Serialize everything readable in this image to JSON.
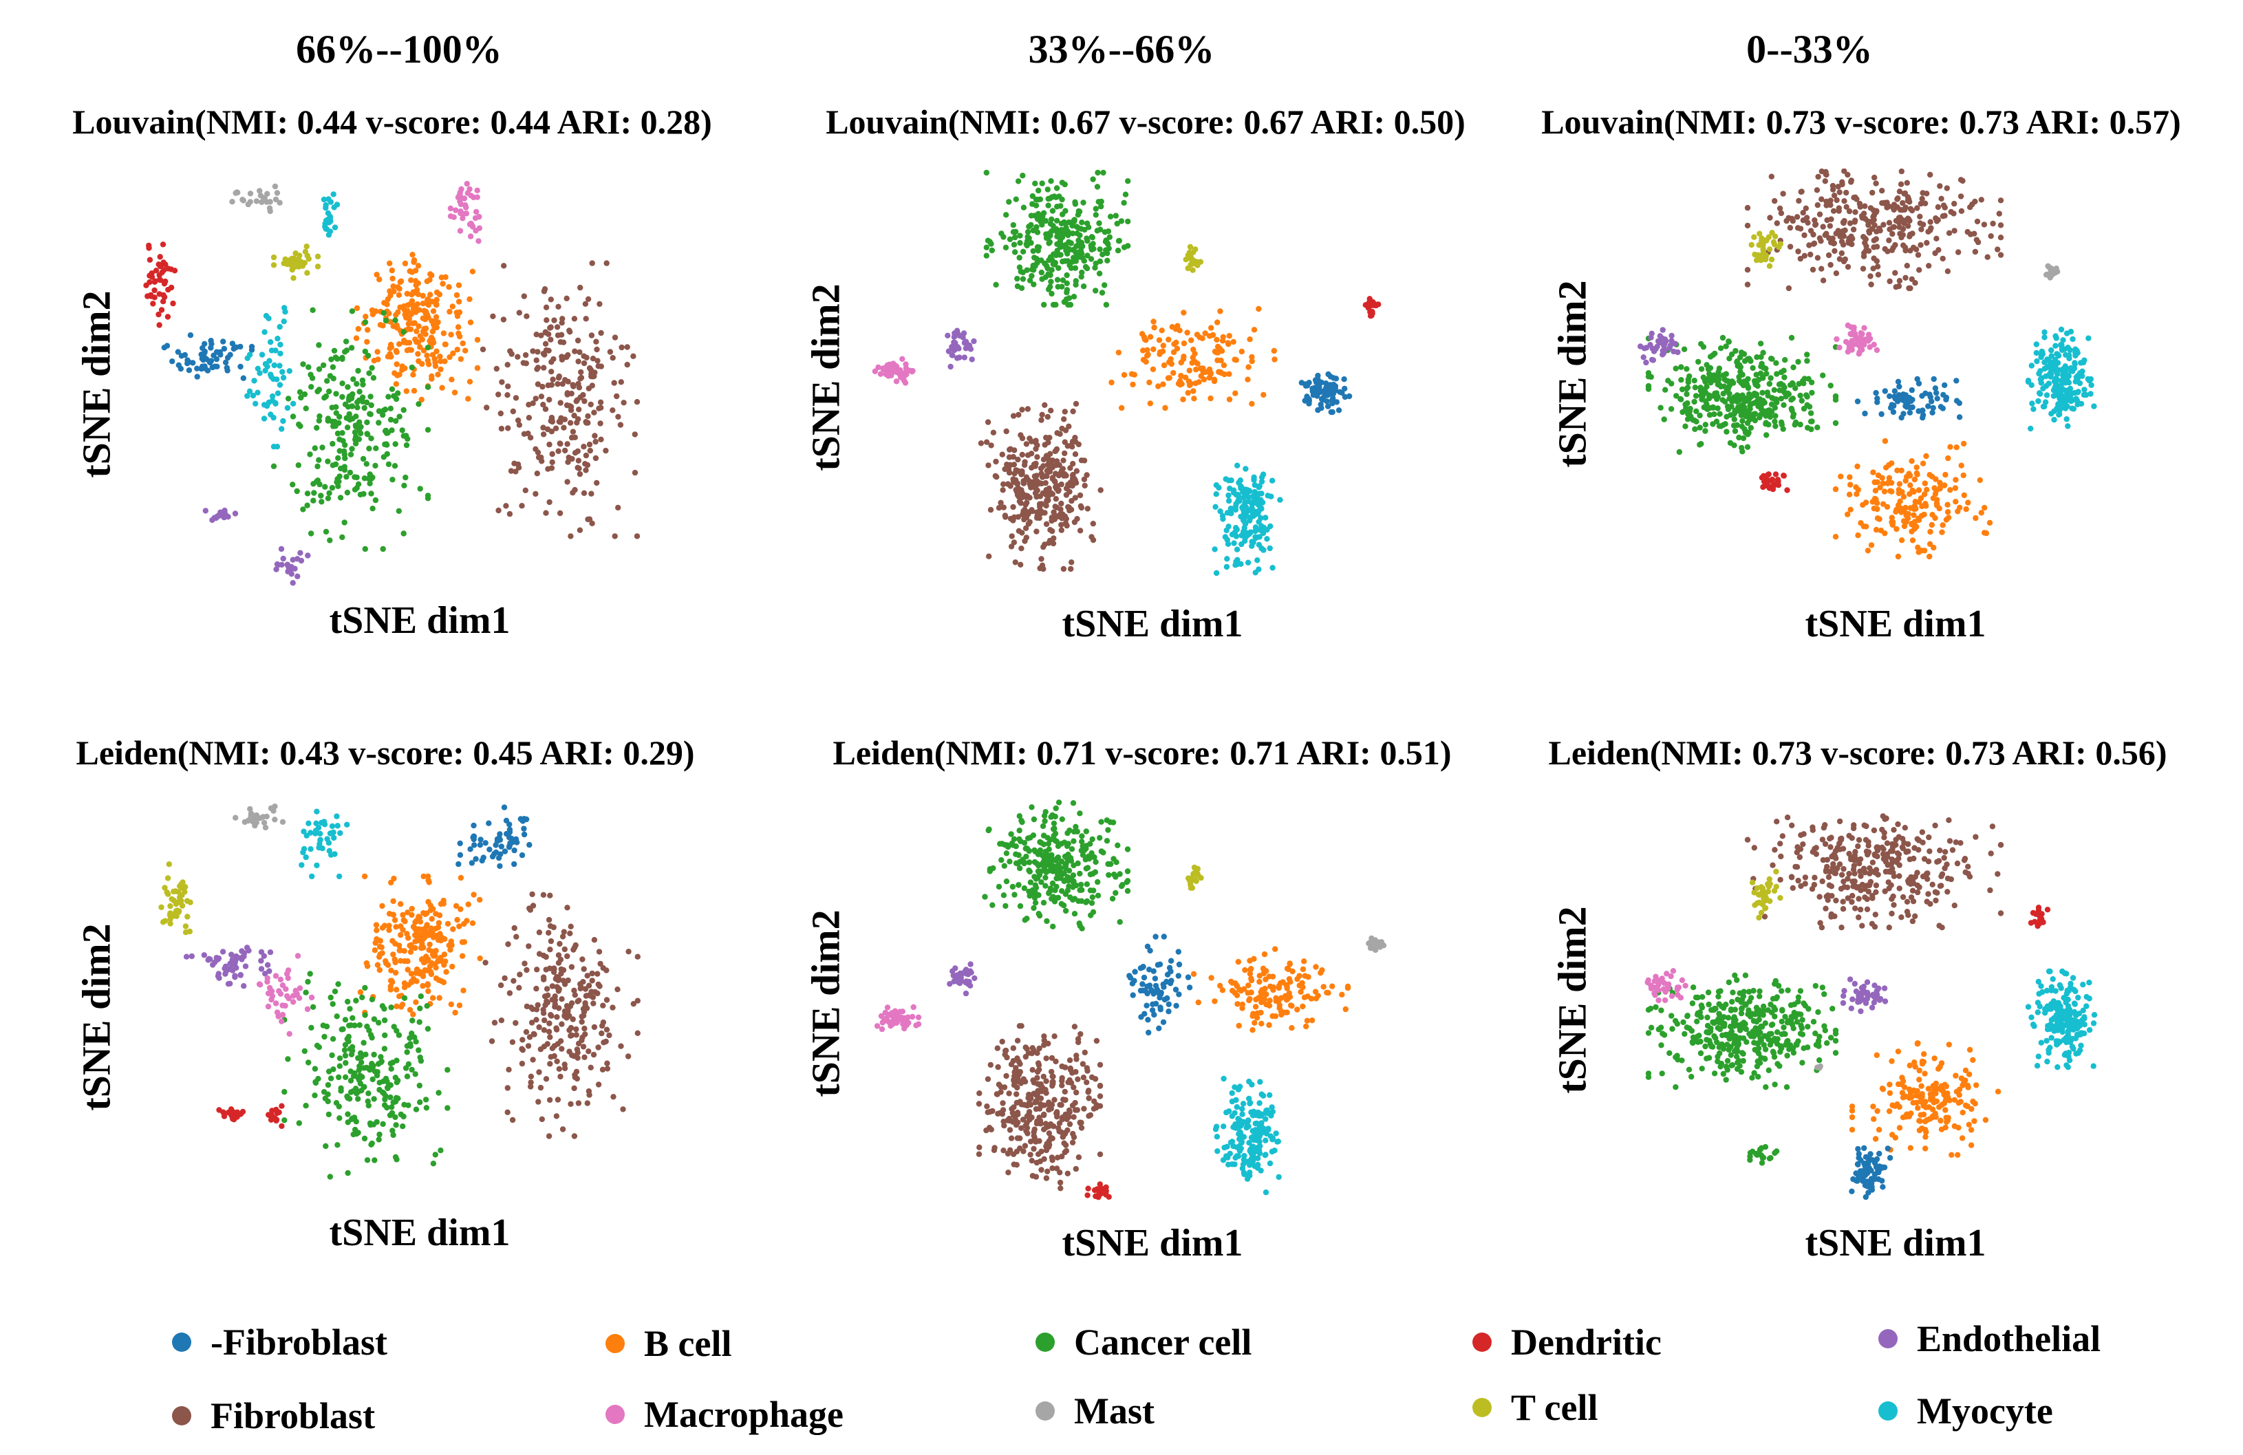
{
  "chart_data": {
    "type": "scatter",
    "xlabel": "tSNE dim1",
    "ylabel": "tSNE dim2",
    "columns": [
      "66%--100%",
      "33%--66%",
      "0--33%"
    ],
    "legend": [
      {
        "label": "-Fibroblast",
        "color": "#1f77b4"
      },
      {
        "label": "B cell",
        "color": "#ff7f0e"
      },
      {
        "label": "Cancer cell",
        "color": "#2ca02c"
      },
      {
        "label": "Dendritic",
        "color": "#d62728"
      },
      {
        "label": "Endothelial",
        "color": "#9467bd"
      },
      {
        "label": "Fibroblast",
        "color": "#8c564b"
      },
      {
        "label": "Macrophage",
        "color": "#e377c2"
      },
      {
        "label": "Mast",
        "color": "#a6a6a6"
      },
      {
        "label": "T cell",
        "color": "#bcbd22"
      },
      {
        "label": "Myocyte",
        "color": "#17becf"
      }
    ],
    "panels": [
      {
        "method": "Louvain",
        "column": "66%--100%",
        "title": "Louvain(NMI: 0.44  v-score: 0.44  ARI: 0.28)",
        "NMI": 0.44,
        "v_score": 0.44,
        "ARI": 0.28,
        "clusters": [
          {
            "label": "Fibroblast",
            "cx": 0.78,
            "cy": 0.55,
            "rx": 0.14,
            "ry": 0.32,
            "n": 260
          },
          {
            "label": "B cell",
            "cx": 0.52,
            "cy": 0.38,
            "rx": 0.11,
            "ry": 0.17,
            "n": 230
          },
          {
            "label": "Cancer cell",
            "cx": 0.4,
            "cy": 0.62,
            "rx": 0.14,
            "ry": 0.28,
            "n": 240
          },
          {
            "label": "Dendritic",
            "cx": 0.05,
            "cy": 0.28,
            "rx": 0.03,
            "ry": 0.11,
            "n": 45
          },
          {
            "label": "-Fibroblast",
            "cx": 0.14,
            "cy": 0.45,
            "rx": 0.08,
            "ry": 0.06,
            "n": 60
          },
          {
            "label": "Myocyte",
            "cx": 0.26,
            "cy": 0.48,
            "rx": 0.05,
            "ry": 0.18,
            "n": 55
          },
          {
            "label": "Myocyte",
            "cx": 0.36,
            "cy": 0.12,
            "rx": 0.02,
            "ry": 0.06,
            "n": 25
          },
          {
            "label": "Macrophage",
            "cx": 0.61,
            "cy": 0.1,
            "rx": 0.04,
            "ry": 0.08,
            "n": 40
          },
          {
            "label": "Mast",
            "cx": 0.23,
            "cy": 0.08,
            "rx": 0.05,
            "ry": 0.03,
            "n": 25
          },
          {
            "label": "T cell",
            "cx": 0.3,
            "cy": 0.23,
            "rx": 0.04,
            "ry": 0.04,
            "n": 35
          },
          {
            "label": "Endothelial",
            "cx": 0.16,
            "cy": 0.82,
            "rx": 0.03,
            "ry": 0.02,
            "n": 20
          },
          {
            "label": "Endothelial",
            "cx": 0.29,
            "cy": 0.94,
            "rx": 0.04,
            "ry": 0.04,
            "n": 25
          }
        ]
      },
      {
        "method": "Louvain",
        "column": "33%--66%",
        "title": "Louvain(NMI: 0.67  v-score: 0.67  ARI: 0.50)",
        "NMI": 0.67,
        "v_score": 0.67,
        "ARI": 0.5,
        "clusters": [
          {
            "label": "Cancer cell",
            "cx": 0.35,
            "cy": 0.17,
            "rx": 0.13,
            "ry": 0.16,
            "n": 300
          },
          {
            "label": "Fibroblast",
            "cx": 0.32,
            "cy": 0.77,
            "rx": 0.11,
            "ry": 0.2,
            "n": 330
          },
          {
            "label": "B cell",
            "cx": 0.6,
            "cy": 0.46,
            "rx": 0.15,
            "ry": 0.12,
            "n": 140
          },
          {
            "label": "-Fibroblast",
            "cx": 0.84,
            "cy": 0.54,
            "rx": 0.05,
            "ry": 0.05,
            "n": 80
          },
          {
            "label": "Myocyte",
            "cx": 0.7,
            "cy": 0.84,
            "rx": 0.06,
            "ry": 0.14,
            "n": 180
          },
          {
            "label": "Macrophage",
            "cx": 0.05,
            "cy": 0.49,
            "rx": 0.04,
            "ry": 0.03,
            "n": 50
          },
          {
            "label": "Endothelial",
            "cx": 0.17,
            "cy": 0.43,
            "rx": 0.03,
            "ry": 0.05,
            "n": 35
          },
          {
            "label": "T cell",
            "cx": 0.6,
            "cy": 0.22,
            "rx": 0.015,
            "ry": 0.03,
            "n": 20
          },
          {
            "label": "Dendritic",
            "cx": 0.93,
            "cy": 0.33,
            "rx": 0.015,
            "ry": 0.03,
            "n": 18
          }
        ]
      },
      {
        "method": "Louvain",
        "column": "0--33%",
        "title": "Louvain(NMI: 0.73  v-score: 0.73  ARI: 0.57)",
        "NMI": 0.73,
        "v_score": 0.73,
        "ARI": 0.57,
        "clusters": [
          {
            "label": "Fibroblast",
            "cx": 0.48,
            "cy": 0.14,
            "rx": 0.23,
            "ry": 0.15,
            "n": 330
          },
          {
            "label": "Cancer cell",
            "cx": 0.24,
            "cy": 0.55,
            "rx": 0.17,
            "ry": 0.14,
            "n": 380
          },
          {
            "label": "Myocyte",
            "cx": 0.82,
            "cy": 0.51,
            "rx": 0.06,
            "ry": 0.12,
            "n": 200
          },
          {
            "label": "B cell",
            "cx": 0.55,
            "cy": 0.8,
            "rx": 0.14,
            "ry": 0.14,
            "n": 180
          },
          {
            "label": "-Fibroblast",
            "cx": 0.55,
            "cy": 0.56,
            "rx": 0.1,
            "ry": 0.05,
            "n": 70
          },
          {
            "label": "Macrophage",
            "cx": 0.45,
            "cy": 0.42,
            "rx": 0.04,
            "ry": 0.04,
            "n": 45
          },
          {
            "label": "T cell",
            "cx": 0.28,
            "cy": 0.19,
            "rx": 0.03,
            "ry": 0.06,
            "n": 35
          },
          {
            "label": "Endothelial",
            "cx": 0.09,
            "cy": 0.43,
            "rx": 0.04,
            "ry": 0.04,
            "n": 35
          },
          {
            "label": "Dendritic",
            "cx": 0.3,
            "cy": 0.76,
            "rx": 0.03,
            "ry": 0.025,
            "n": 25
          },
          {
            "label": "Mast",
            "cx": 0.8,
            "cy": 0.25,
            "rx": 0.015,
            "ry": 0.02,
            "n": 15
          }
        ]
      },
      {
        "method": "Leiden",
        "column": "66%--100%",
        "title": "Leiden(NMI: 0.43  v-score: 0.45  ARI: 0.29)",
        "NMI": 0.43,
        "v_score": 0.45,
        "ARI": 0.29,
        "clusters": [
          {
            "label": "Fibroblast",
            "cx": 0.78,
            "cy": 0.55,
            "rx": 0.14,
            "ry": 0.3,
            "n": 260
          },
          {
            "label": "B cell",
            "cx": 0.52,
            "cy": 0.38,
            "rx": 0.11,
            "ry": 0.17,
            "n": 230
          },
          {
            "label": "Cancer cell",
            "cx": 0.42,
            "cy": 0.7,
            "rx": 0.15,
            "ry": 0.25,
            "n": 240
          },
          {
            "label": "-Fibroblast",
            "cx": 0.65,
            "cy": 0.13,
            "rx": 0.09,
            "ry": 0.09,
            "n": 60
          },
          {
            "label": "T cell",
            "cx": 0.07,
            "cy": 0.28,
            "rx": 0.04,
            "ry": 0.1,
            "n": 45
          },
          {
            "label": "Endothelial",
            "cx": 0.18,
            "cy": 0.42,
            "rx": 0.09,
            "ry": 0.06,
            "n": 55
          },
          {
            "label": "Macrophage",
            "cx": 0.27,
            "cy": 0.5,
            "rx": 0.07,
            "ry": 0.1,
            "n": 40
          },
          {
            "label": "Myocyte",
            "cx": 0.34,
            "cy": 0.12,
            "rx": 0.05,
            "ry": 0.09,
            "n": 40
          },
          {
            "label": "Mast",
            "cx": 0.23,
            "cy": 0.06,
            "rx": 0.05,
            "ry": 0.03,
            "n": 25
          },
          {
            "label": "Dendritic",
            "cx": 0.18,
            "cy": 0.8,
            "rx": 0.03,
            "ry": 0.02,
            "n": 20
          },
          {
            "label": "Dendritic",
            "cx": 0.25,
            "cy": 0.8,
            "rx": 0.015,
            "ry": 0.03,
            "n": 15
          }
        ]
      },
      {
        "method": "Leiden",
        "column": "33%--66%",
        "title": "Leiden(NMI: 0.71  v-score: 0.71  ARI: 0.51)",
        "NMI": 0.71,
        "v_score": 0.71,
        "ARI": 0.51,
        "clusters": [
          {
            "label": "Cancer cell",
            "cx": 0.35,
            "cy": 0.17,
            "rx": 0.13,
            "ry": 0.16,
            "n": 300
          },
          {
            "label": "Fibroblast",
            "cx": 0.32,
            "cy": 0.77,
            "rx": 0.11,
            "ry": 0.2,
            "n": 330
          },
          {
            "label": "B cell",
            "cx": 0.74,
            "cy": 0.48,
            "rx": 0.14,
            "ry": 0.1,
            "n": 140
          },
          {
            "label": "-Fibroblast",
            "cx": 0.54,
            "cy": 0.47,
            "rx": 0.06,
            "ry": 0.12,
            "n": 70
          },
          {
            "label": "Myocyte",
            "cx": 0.7,
            "cy": 0.84,
            "rx": 0.06,
            "ry": 0.14,
            "n": 180
          },
          {
            "label": "Macrophage",
            "cx": 0.06,
            "cy": 0.55,
            "rx": 0.04,
            "ry": 0.03,
            "n": 50
          },
          {
            "label": "Endothelial",
            "cx": 0.18,
            "cy": 0.45,
            "rx": 0.03,
            "ry": 0.04,
            "n": 35
          },
          {
            "label": "T cell",
            "cx": 0.6,
            "cy": 0.2,
            "rx": 0.015,
            "ry": 0.03,
            "n": 20
          },
          {
            "label": "Mast",
            "cx": 0.93,
            "cy": 0.37,
            "rx": 0.015,
            "ry": 0.025,
            "n": 18
          },
          {
            "label": "Dendritic",
            "cx": 0.43,
            "cy": 0.98,
            "rx": 0.03,
            "ry": 0.02,
            "n": 20
          }
        ]
      },
      {
        "method": "Leiden",
        "column": "0--33%",
        "title": "Leiden(NMI: 0.73  v-score: 0.73  ARI: 0.56)",
        "NMI": 0.73,
        "v_score": 0.73,
        "ARI": 0.56,
        "clusters": [
          {
            "label": "Fibroblast",
            "cx": 0.48,
            "cy": 0.14,
            "rx": 0.23,
            "ry": 0.15,
            "n": 330
          },
          {
            "label": "Cancer cell",
            "cx": 0.24,
            "cy": 0.55,
            "rx": 0.17,
            "ry": 0.14,
            "n": 380
          },
          {
            "label": "Myocyte",
            "cx": 0.82,
            "cy": 0.52,
            "rx": 0.06,
            "ry": 0.12,
            "n": 200
          },
          {
            "label": "B cell",
            "cx": 0.58,
            "cy": 0.72,
            "rx": 0.14,
            "ry": 0.14,
            "n": 170
          },
          {
            "label": "-Fibroblast",
            "cx": 0.47,
            "cy": 0.9,
            "rx": 0.04,
            "ry": 0.07,
            "n": 70
          },
          {
            "label": "Endothelial",
            "cx": 0.46,
            "cy": 0.46,
            "rx": 0.04,
            "ry": 0.04,
            "n": 45
          },
          {
            "label": "T cell",
            "cx": 0.28,
            "cy": 0.21,
            "rx": 0.03,
            "ry": 0.06,
            "n": 35
          },
          {
            "label": "Macrophage",
            "cx": 0.1,
            "cy": 0.44,
            "rx": 0.04,
            "ry": 0.05,
            "n": 35
          },
          {
            "label": "Dendritic",
            "cx": 0.78,
            "cy": 0.27,
            "rx": 0.015,
            "ry": 0.03,
            "n": 18
          },
          {
            "label": "Cancer cell",
            "cx": 0.28,
            "cy": 0.86,
            "rx": 0.03,
            "ry": 0.02,
            "n": 20
          },
          {
            "label": "Mast",
            "cx": 0.38,
            "cy": 0.64,
            "rx": 0.005,
            "ry": 0.005,
            "n": 3
          }
        ]
      }
    ]
  }
}
